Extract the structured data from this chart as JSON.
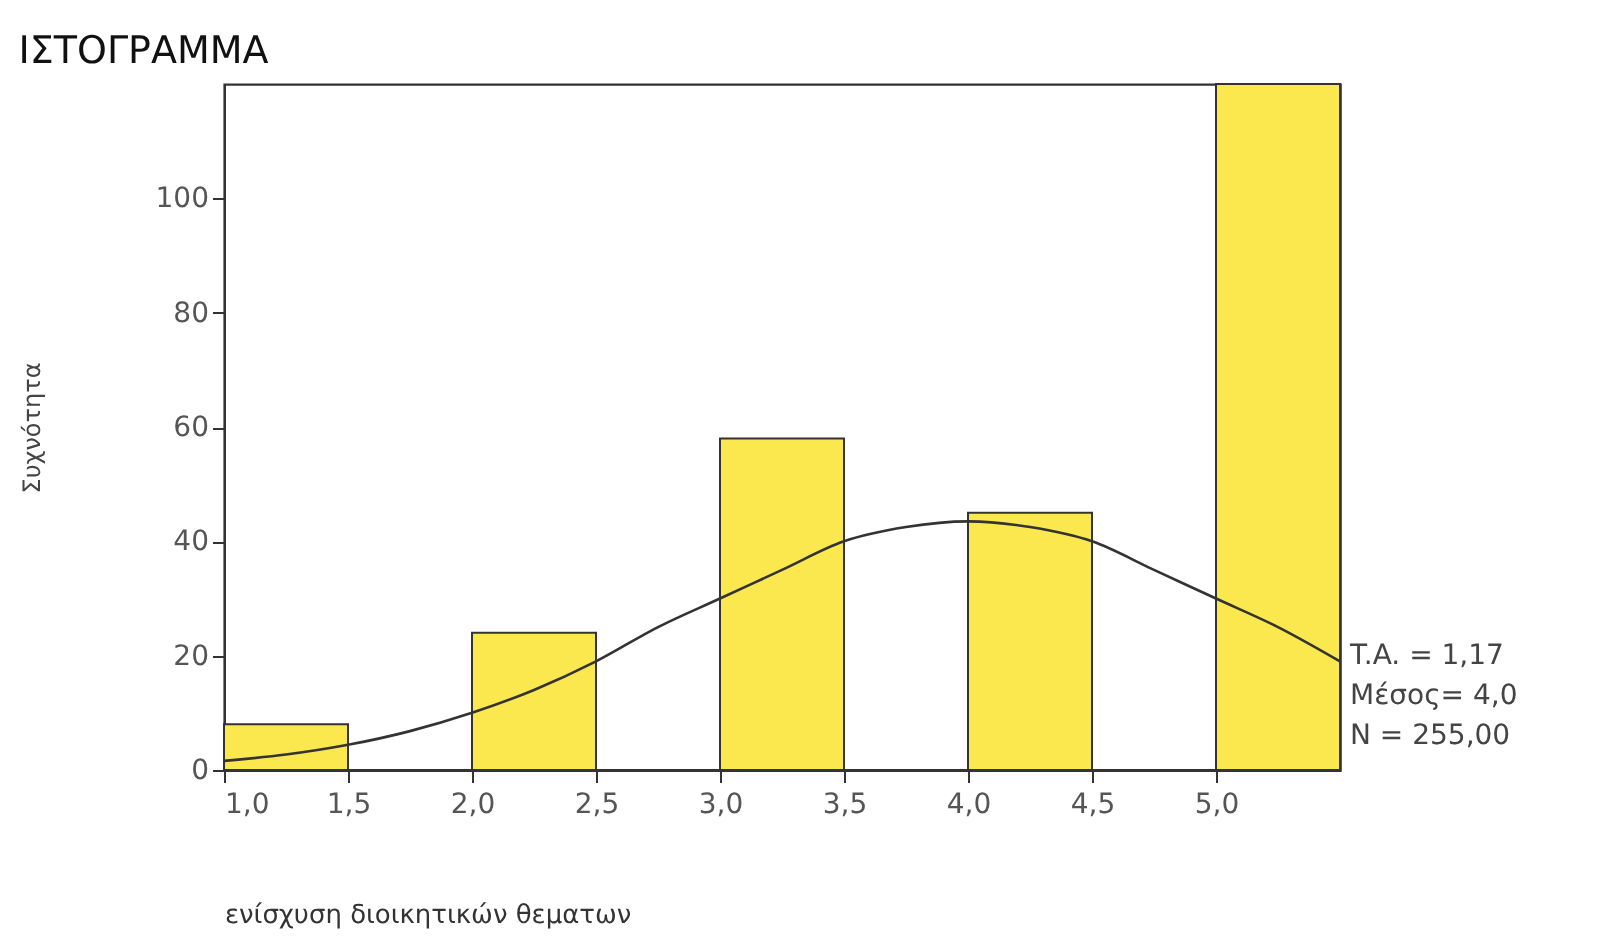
{
  "chart_data": {
    "type": "histogram",
    "title": "ΙΣΤΟΓΡΑΜΜΑ",
    "xlabel": "ενίσχυση διοικητικών θεματων",
    "ylabel": "Συχνότητα",
    "bins": [
      1.0,
      1.5,
      2.0,
      2.5,
      3.0,
      3.5,
      4.0,
      4.5,
      5.0,
      5.5
    ],
    "values": [
      8,
      0,
      24,
      0,
      58,
      0,
      45,
      0,
      120
    ],
    "color": "#fbe84e",
    "series": [
      {
        "type": "line",
        "color": "#333333",
        "x": [
          1.0,
          1.25,
          1.5,
          1.75,
          2.0,
          2.25,
          2.5,
          2.75,
          3.0,
          3.25,
          3.5,
          3.75,
          4.0,
          4.25,
          4.5,
          4.75,
          5.0,
          5.25,
          5.5
        ],
        "values": [
          1.6,
          2.7,
          4.4,
          6.8,
          10,
          14,
          19,
          25,
          30,
          35,
          40,
          42.5,
          43.5,
          42.5,
          40,
          35,
          30,
          25,
          19
        ]
      }
    ],
    "xlim": [
      1.0,
      5.5
    ],
    "xticks": [
      {
        "value": 1.0,
        "label": "1,0"
      },
      {
        "value": 1.5,
        "label": "1,5"
      },
      {
        "value": 2.0,
        "label": "2,0"
      },
      {
        "value": 2.5,
        "label": "2,5"
      },
      {
        "value": 3.0,
        "label": "3,0"
      },
      {
        "value": 3.5,
        "label": "3,5"
      },
      {
        "value": 4.0,
        "label": "4,0"
      },
      {
        "value": 4.5,
        "label": "4,5"
      },
      {
        "value": 5.0,
        "label": "5,0"
      }
    ],
    "ylim": [
      0,
      120
    ],
    "yticks": [
      0,
      20,
      40,
      60,
      80,
      100
    ],
    "grid": false,
    "annotations": [
      "T.A. = 1,17",
      "Μέσος= 4,0",
      "N = 255,00"
    ]
  }
}
